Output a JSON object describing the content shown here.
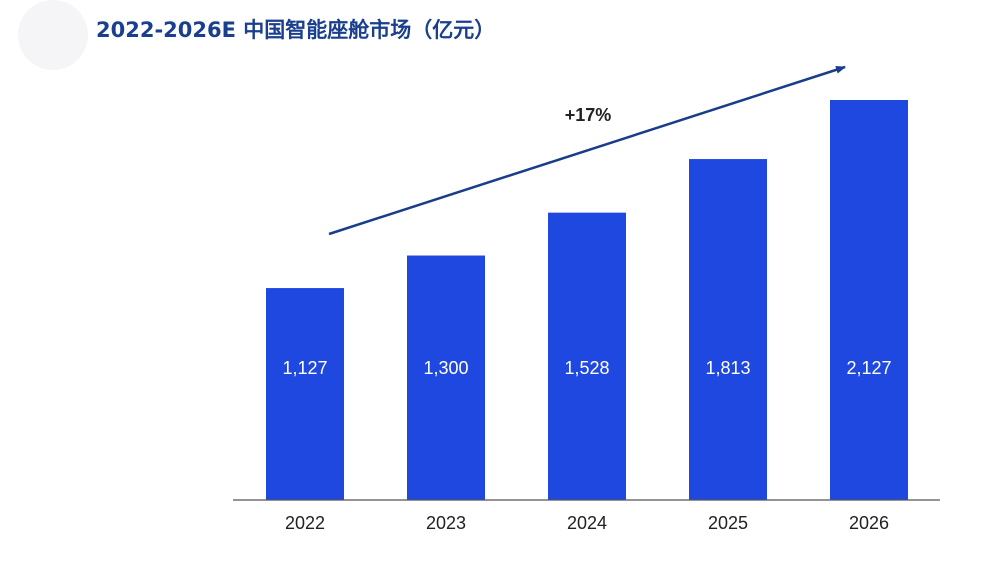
{
  "chart_data": {
    "type": "bar",
    "title": "2022-2026E 中国智能座舱市场（亿元）",
    "categories": [
      "2022",
      "2023",
      "2024",
      "2025",
      "2026"
    ],
    "values": [
      1127,
      1300,
      1528,
      1813,
      2127
    ],
    "value_labels": [
      "1,127",
      "1,300",
      "1,528",
      "1,813",
      "2,127"
    ],
    "annotation": "+17%",
    "grid": false,
    "legend": "none",
    "ylim": [
      0,
      2400
    ],
    "colors": {
      "bar": "#1f48e0",
      "arrow": "#1a3d8a",
      "title": "#1a3f8f",
      "axis": "#555555"
    }
  }
}
